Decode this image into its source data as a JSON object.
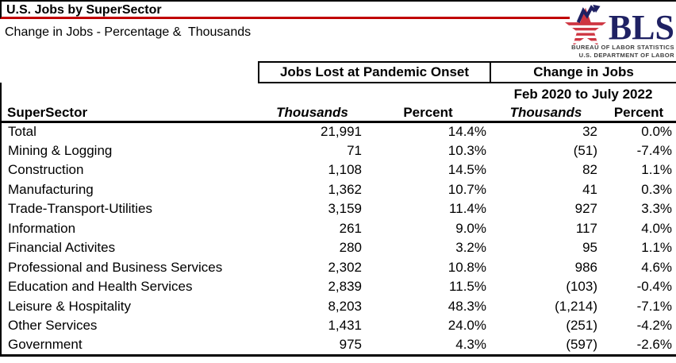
{
  "header": {
    "title": "U.S. Jobs by SuperSector",
    "subtitle": "Change in Jobs - Percentage &  Thousands"
  },
  "logo": {
    "acronym": "BLS",
    "org_line1": "BUREAU OF LABOR STATISTICS",
    "org_line2": "U.S. DEPARTMENT OF LABOR"
  },
  "colors": {
    "title_rule_red": "#C00000",
    "table_border": "#000000",
    "logo_navy": "#1F2163",
    "logo_red": "#CE3541",
    "background": "#FFFFFF"
  },
  "table": {
    "group_header_left": "Jobs Lost at Pandemic Onset",
    "group_header_right": "Change in Jobs",
    "group_subheader_right": "Feb 2020 to July 2022",
    "row_header": "SuperSector",
    "col_headers": [
      "Thousands",
      "Percent",
      "Thousands",
      "Percent"
    ]
  },
  "chart_data": {
    "type": "table",
    "title": "U.S. Jobs by SuperSector",
    "subtitle": "Change in Jobs - Percentage &  Thousands",
    "column_groups": [
      {
        "label": "Jobs Lost at Pandemic Onset",
        "columns": [
          "Thousands",
          "Percent"
        ]
      },
      {
        "label": "Change in Jobs",
        "sublabel": "Feb 2020 to July 2022",
        "columns": [
          "Thousands",
          "Percent"
        ]
      }
    ],
    "columns": [
      "SuperSector",
      "Jobs Lost at Pandemic Onset - Thousands",
      "Jobs Lost at Pandemic Onset - Percent",
      "Change in Jobs Feb 2020 to July 2022 - Thousands",
      "Change in Jobs Feb 2020 to July 2022 - Percent"
    ],
    "rows": [
      [
        "Total",
        "21,991",
        "14.4%",
        "32",
        "0.0%"
      ],
      [
        "Mining & Logging",
        "71",
        "10.3%",
        "(51)",
        "-7.4%"
      ],
      [
        "Construction",
        "1,108",
        "14.5%",
        "82",
        "1.1%"
      ],
      [
        "Manufacturing",
        "1,362",
        "10.7%",
        "41",
        "0.3%"
      ],
      [
        "Trade-Transport-Utilities",
        "3,159",
        "11.4%",
        "927",
        "3.3%"
      ],
      [
        "Information",
        "261",
        "9.0%",
        "117",
        "4.0%"
      ],
      [
        "Financial Activites",
        "280",
        "3.2%",
        "95",
        "1.1%"
      ],
      [
        "Professional and Business Services",
        "2,302",
        "10.8%",
        "986",
        "4.6%"
      ],
      [
        "Education and Health Services",
        "2,839",
        "11.5%",
        "(103)",
        "-0.4%"
      ],
      [
        "Leisure & Hospitality",
        "8,203",
        "48.3%",
        "(1,214)",
        "-7.1%"
      ],
      [
        "Other Services",
        "1,431",
        "24.0%",
        "(251)",
        "-4.2%"
      ],
      [
        "Government",
        "975",
        "4.3%",
        "(597)",
        "-2.6%"
      ]
    ]
  }
}
